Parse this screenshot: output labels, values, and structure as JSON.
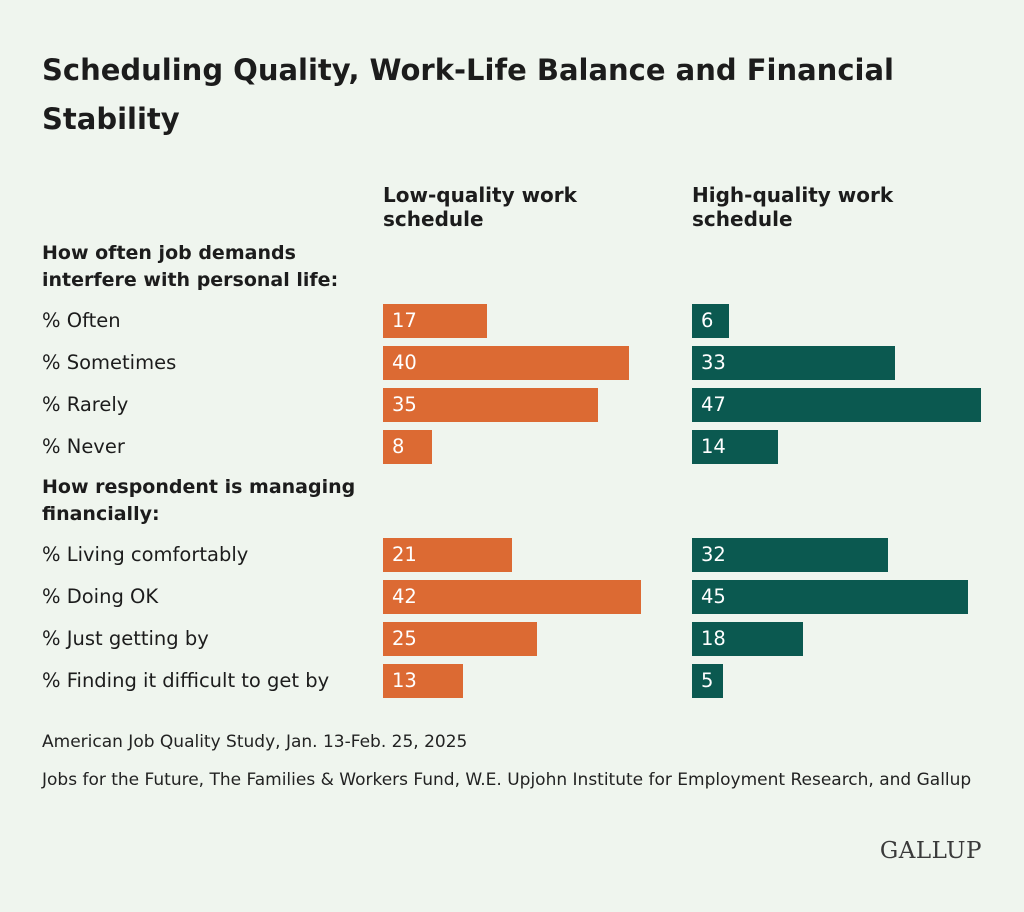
{
  "chart_data": {
    "type": "bar",
    "title": "Scheduling Quality, Work-Life Balance and Financial Stability",
    "groups": [
      {
        "label": "How often job demands interfere with personal life:",
        "categories": [
          "% Often",
          "% Sometimes",
          "% Rarely",
          "% Never"
        ]
      },
      {
        "label": "How respondent is managing financially:",
        "categories": [
          "% Living comfortably",
          "% Doing OK",
          "% Just getting by",
          "% Finding it difficult to get by"
        ]
      }
    ],
    "series": [
      {
        "name": "Low-quality work schedule",
        "color": "#dc6a33",
        "values": [
          [
            17,
            40,
            35,
            8
          ],
          [
            21,
            42,
            25,
            13
          ]
        ]
      },
      {
        "name": "High-quality work schedule",
        "color": "#0b5950",
        "values": [
          [
            6,
            33,
            47,
            14
          ],
          [
            32,
            45,
            18,
            5
          ]
        ]
      }
    ],
    "notes": [
      "American Job Quality Study, Jan. 13-Feb. 25, 2025",
      "Jobs for the Future, The Families & Workers Fund, W.E. Upjohn Institute for Employment Research, and Gallup"
    ],
    "logo": "GALLUP"
  }
}
